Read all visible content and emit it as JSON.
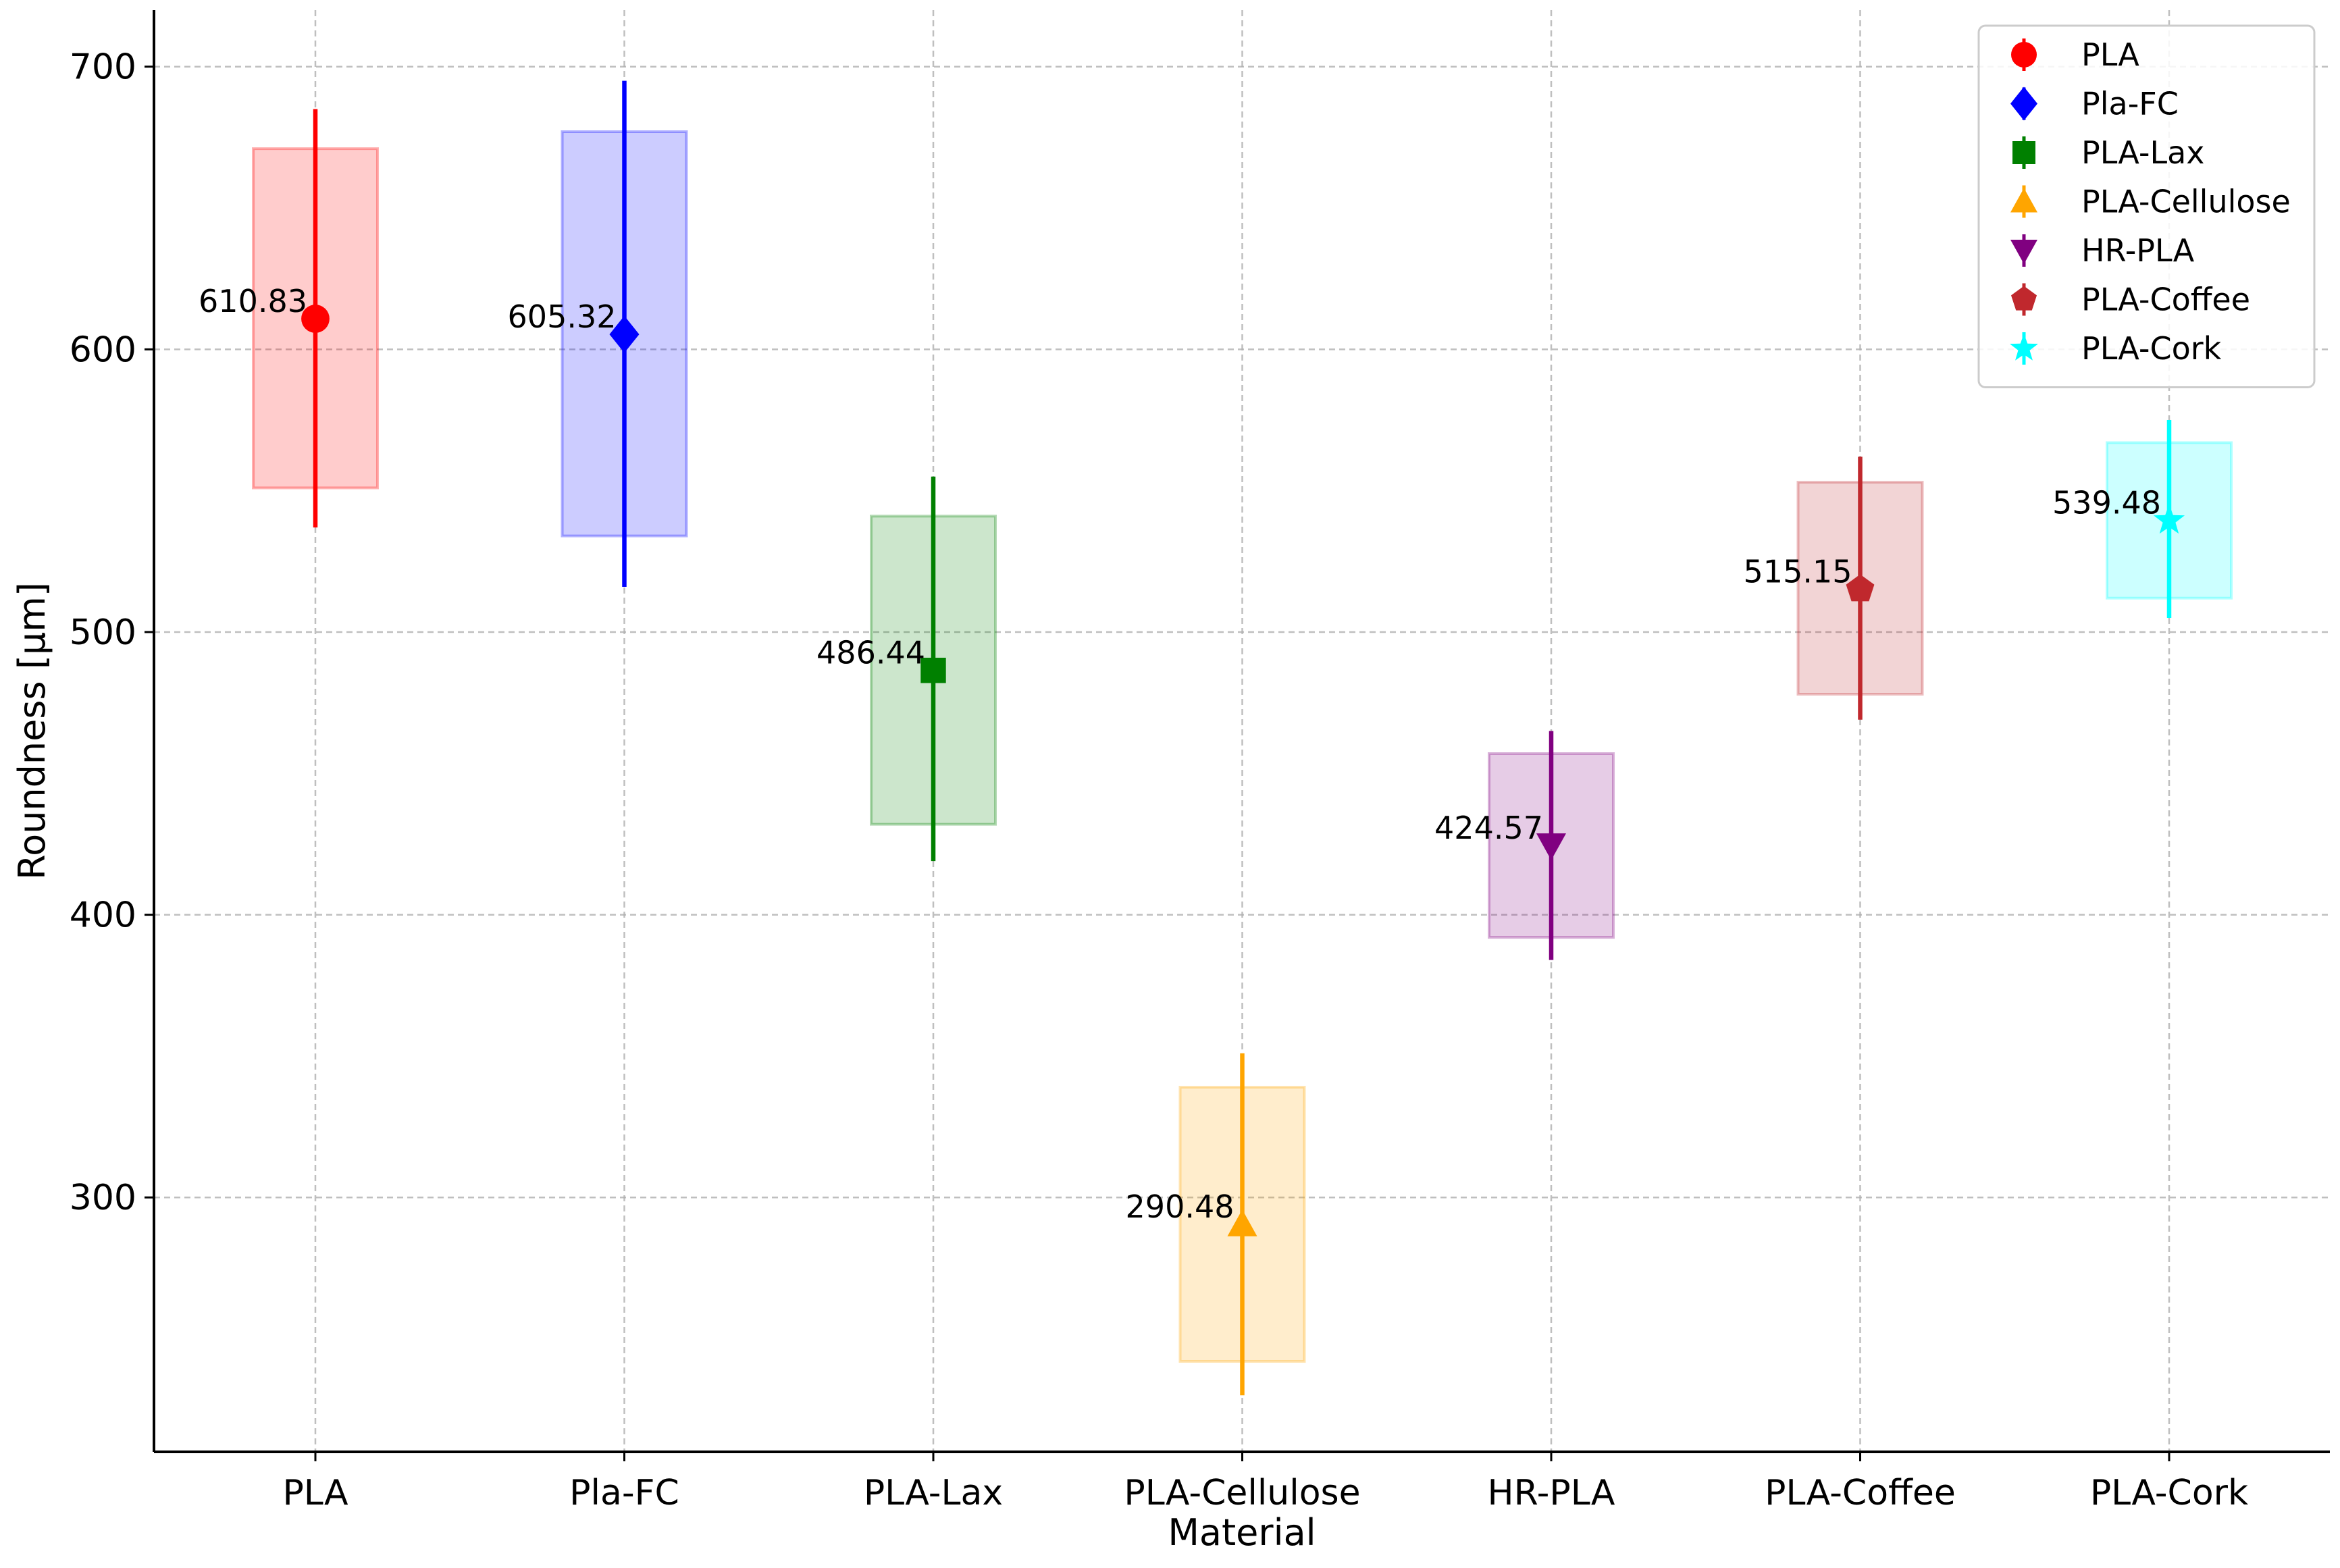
{
  "chart_data": {
    "type": "scatter",
    "xlabel": "Material",
    "ylabel": "Roundness [µm]",
    "ylim": [
      210,
      720
    ],
    "yticks": [
      300,
      400,
      500,
      600,
      700
    ],
    "grid": true,
    "legend_position": "top-right",
    "categories": [
      "PLA",
      "Pla-FC",
      "PLA-Lax",
      "PLA-Cellulose",
      "HR-PLA",
      "PLA-Coffee",
      "PLA-Cork"
    ],
    "series": [
      {
        "name": "PLA",
        "color": "#ff0000",
        "marker": "circle",
        "mean": 610.83,
        "label": "610.83",
        "box_low": 551,
        "box_high": 671,
        "err_low": 537,
        "err_high": 685
      },
      {
        "name": "Pla-FC",
        "color": "#0000ff",
        "marker": "diamond",
        "mean": 605.32,
        "label": "605.32",
        "box_low": 534,
        "box_high": 677,
        "err_low": 516,
        "err_high": 695
      },
      {
        "name": "PLA-Lax",
        "color": "#008000",
        "marker": "square",
        "mean": 486.44,
        "label": "486.44",
        "box_low": 432,
        "box_high": 541,
        "err_low": 419,
        "err_high": 555
      },
      {
        "name": "PLA-Cellulose",
        "color": "#ffa500",
        "marker": "triangle-up",
        "mean": 290.48,
        "label": "290.48",
        "box_low": 242,
        "box_high": 339,
        "err_low": 230,
        "err_high": 351
      },
      {
        "name": "HR-PLA",
        "color": "#800080",
        "marker": "triangle-down",
        "mean": 424.57,
        "label": "424.57",
        "box_low": 392,
        "box_high": 457,
        "err_low": 384,
        "err_high": 465
      },
      {
        "name": "PLA-Coffee",
        "color": "#c0282d",
        "marker": "pentagon",
        "mean": 515.15,
        "label": "515.15",
        "box_low": 478,
        "box_high": 553,
        "err_low": 469,
        "err_high": 562
      },
      {
        "name": "PLA-Cork",
        "color": "#00ffff",
        "marker": "star",
        "mean": 539.48,
        "label": "539.48",
        "box_low": 512,
        "box_high": 567,
        "err_low": 505,
        "err_high": 575
      }
    ]
  }
}
